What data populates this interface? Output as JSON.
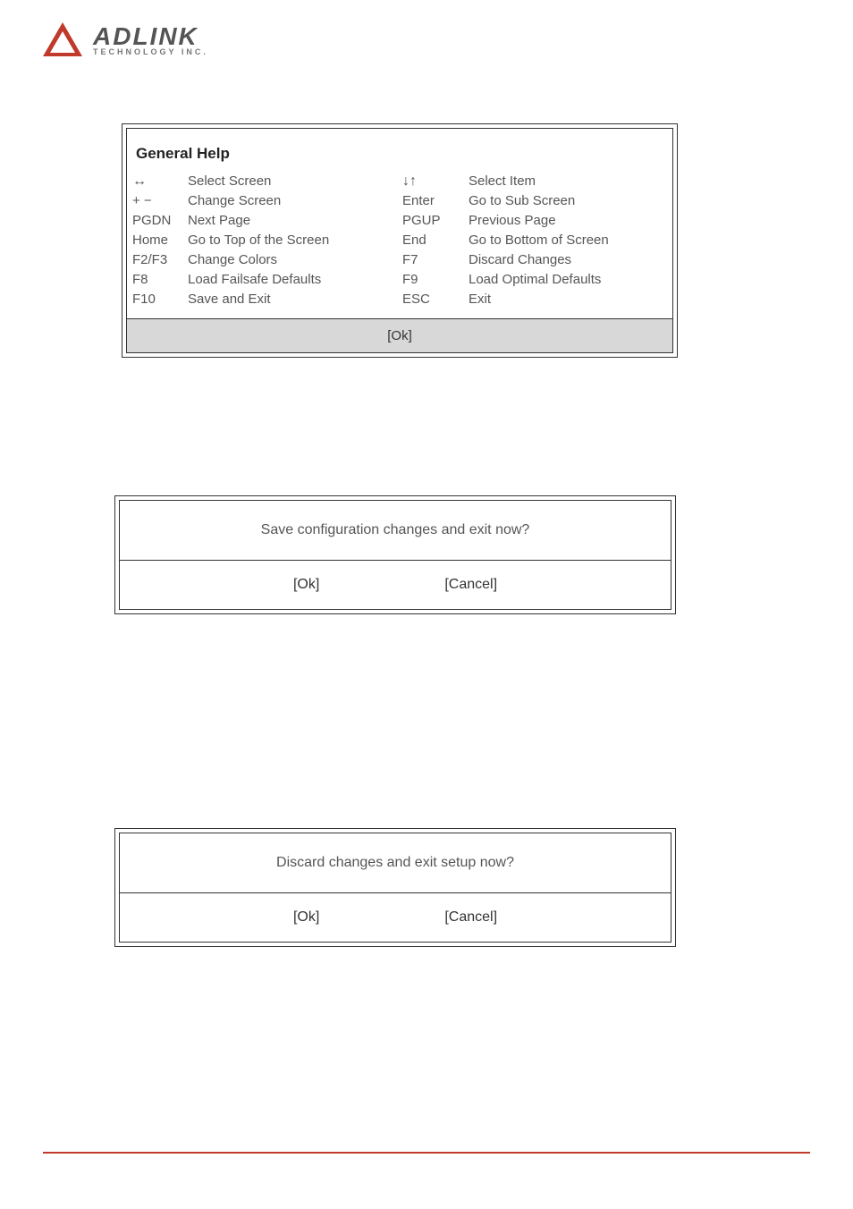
{
  "logo": {
    "main": "ADLINK",
    "sub": "TECHNOLOGY INC.",
    "triangle_color": "#c0392b"
  },
  "general_help": {
    "title": "General Help",
    "left": [
      {
        "key_symbol": "↔",
        "action": "Select Screen"
      },
      {
        "key": "+ −",
        "action": "Change Screen"
      },
      {
        "key": "PGDN",
        "action": "Next Page"
      },
      {
        "key": "Home",
        "action": "Go to Top of the Screen"
      },
      {
        "key": "F2/F3",
        "action": "Change Colors"
      },
      {
        "key": "F8",
        "action": "Load Failsafe Defaults"
      },
      {
        "key": "F10",
        "action": "Save and Exit"
      }
    ],
    "right": [
      {
        "key_symbol": "↓↑",
        "action": "Select Item"
      },
      {
        "key": "Enter",
        "action": "Go to Sub Screen"
      },
      {
        "key": "PGUP",
        "action": "Previous Page"
      },
      {
        "key": "End",
        "action": "Go to Bottom of Screen"
      },
      {
        "key": "F7",
        "action": "Discard Changes"
      },
      {
        "key": "F9",
        "action": "Load Optimal Defaults"
      },
      {
        "key": "ESC",
        "action": "Exit"
      }
    ],
    "ok_label": "[Ok]"
  },
  "dialog_save": {
    "message": "Save configuration changes and exit now?",
    "ok": "[Ok]",
    "cancel": "[Cancel]"
  },
  "dialog_discard": {
    "message": "Discard changes and exit setup now?",
    "ok": "[Ok]",
    "cancel": "[Cancel]"
  },
  "colors": {
    "text": "#555555",
    "border": "#333333",
    "footer_bg": "#d8d8d8",
    "rule": "#c0392b",
    "background": "#ffffff"
  },
  "fonts": {
    "body_pt": 15,
    "title_pt": 17,
    "dialog_pt": 16
  }
}
